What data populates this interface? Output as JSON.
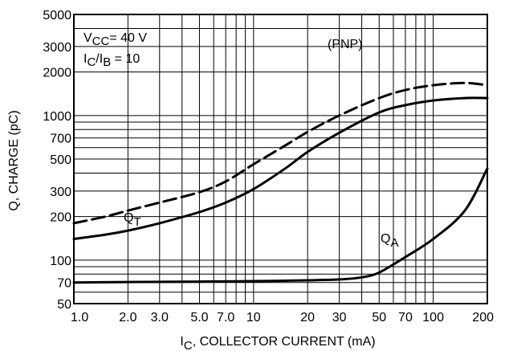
{
  "chart_data": {
    "type": "line",
    "title": "",
    "xlabel_main": "I",
    "xlabel_sub": "C",
    "xlabel_rest": ", COLLECTOR CURRENT (mA)",
    "ylabel": "Q, CHARGE (pC)",
    "xscale": "log",
    "yscale": "log",
    "xlim": [
      1,
      200
    ],
    "ylim": [
      50,
      5000
    ],
    "grid": true,
    "x_ticks": [
      {
        "value": 1,
        "label": "1.0"
      },
      {
        "value": 2,
        "label": "2.0"
      },
      {
        "value": 3,
        "label": "3.0"
      },
      {
        "value": 5,
        "label": "5.0"
      },
      {
        "value": 7,
        "label": "7.0"
      },
      {
        "value": 10,
        "label": "10"
      },
      {
        "value": 20,
        "label": "20"
      },
      {
        "value": 30,
        "label": "30"
      },
      {
        "value": 50,
        "label": "50"
      },
      {
        "value": 70,
        "label": "70"
      },
      {
        "value": 100,
        "label": "100"
      },
      {
        "value": 200,
        "label": "200"
      }
    ],
    "y_ticks": [
      {
        "value": 50,
        "label": "50"
      },
      {
        "value": 70,
        "label": "70"
      },
      {
        "value": 100,
        "label": "100"
      },
      {
        "value": 200,
        "label": "200"
      },
      {
        "value": 300,
        "label": "300"
      },
      {
        "value": 500,
        "label": "500"
      },
      {
        "value": 700,
        "label": "700"
      },
      {
        "value": 1000,
        "label": "1000"
      },
      {
        "value": 2000,
        "label": "2000"
      },
      {
        "value": 3000,
        "label": "3000"
      },
      {
        "value": 5000,
        "label": "5000"
      }
    ],
    "series": [
      {
        "name": "",
        "style": "dashed",
        "x": [
          1,
          1.5,
          2,
          3,
          5,
          7,
          10,
          15,
          20,
          30,
          50,
          70,
          100,
          150,
          200
        ],
        "y": [
          180,
          200,
          220,
          250,
          295,
          350,
          460,
          620,
          770,
          1000,
          1320,
          1500,
          1620,
          1680,
          1620
        ]
      },
      {
        "name": "Q_T",
        "label_main": "Q",
        "label_sub": "T",
        "style": "solid",
        "x": [
          1,
          1.5,
          2,
          3,
          5,
          7,
          10,
          15,
          20,
          30,
          50,
          70,
          100,
          150,
          200
        ],
        "y": [
          140,
          150,
          160,
          180,
          215,
          250,
          310,
          430,
          560,
          760,
          1050,
          1180,
          1270,
          1320,
          1320
        ]
      },
      {
        "name": "Q_A",
        "label_main": "Q",
        "label_sub": "A",
        "style": "solid",
        "x": [
          1,
          2,
          5,
          10,
          20,
          30,
          40,
          50,
          70,
          100,
          150,
          200
        ],
        "y": [
          70,
          70.5,
          71,
          71.5,
          72.5,
          73.5,
          76,
          82,
          105,
          140,
          220,
          430
        ]
      }
    ],
    "annotations": {
      "vcc_main": "V",
      "vcc_sub": "CC",
      "vcc_rest": "= 40 V",
      "ratio_main1": "I",
      "ratio_sub1": "C",
      "ratio_mid": "/I",
      "ratio_sub2": "B",
      "ratio_rest": " = 10",
      "polarity": "(PNP)"
    }
  }
}
